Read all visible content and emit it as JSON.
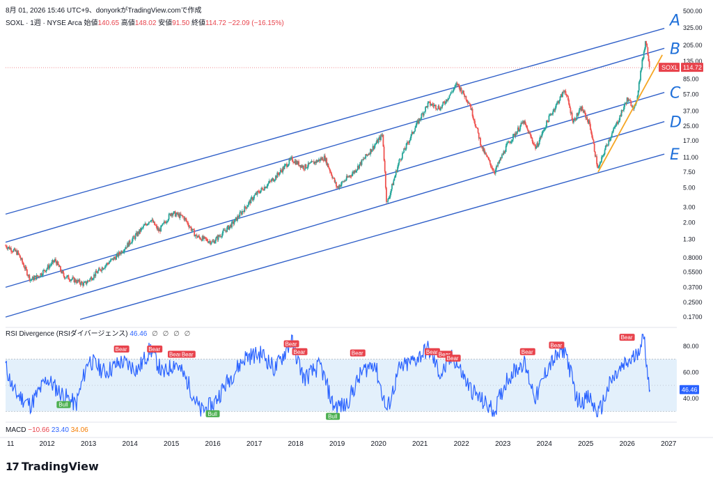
{
  "header": {
    "text": "8月 01, 2026 15:46 UTC+9、donyorkがTradingView.comで作成"
  },
  "legend": {
    "symbol_text": "SOXL · 1週 · NYSE Arca",
    "open_label": "始値",
    "open_value": "140.65",
    "high_label": "高値",
    "high_value": "148.02",
    "low_label": "安値",
    "low_value": "91.50",
    "close_label": "終値",
    "close_value": "114.72",
    "change": "−22.09 (−16.15%)"
  },
  "price_badge": {
    "symbol": "SOXL",
    "value": "114.72",
    "color": "#e8434c"
  },
  "rsi_panel": {
    "title": "RSI Divergence (RSIダイバージェンス)",
    "value": "46.46",
    "icons": [
      "∅",
      "∅",
      "∅",
      "∅"
    ],
    "badge_value": "46.46"
  },
  "macd_panel": {
    "title": "MACD",
    "v1": "−10.66",
    "v2": "23.40",
    "v3": "34.06"
  },
  "brand": {
    "mark": "17",
    "name": "TradingView"
  },
  "channel_labels": [
    "A",
    "B",
    "C",
    "D",
    "E"
  ],
  "chart_data": {
    "type": "candlestick",
    "log_scale": true,
    "y_ticks": [
      "500.00",
      "325.00",
      "205.00",
      "135.00",
      "85.00",
      "57.00",
      "37.00",
      "25.00",
      "17.00",
      "11.00",
      "7.50",
      "5.00",
      "3.00",
      "2.00",
      "1.30",
      "0.8000",
      "0.5500",
      "0.3700",
      "0.2500",
      "0.1700"
    ],
    "y_tick_values": [
      500,
      325,
      205,
      135,
      85,
      57,
      37,
      25,
      17,
      11,
      7.5,
      5,
      3,
      2,
      1.3,
      0.8,
      0.55,
      0.37,
      0.25,
      0.17
    ],
    "ylim": [
      0.15,
      520
    ],
    "x_ticks": [
      "11",
      "2012",
      "2013",
      "2014",
      "2015",
      "2016",
      "2017",
      "2018",
      "2019",
      "2020",
      "2021",
      "2022",
      "2023",
      "2024",
      "2025",
      "2026",
      "2027"
    ],
    "xlim": [
      2011.0,
      2027.2
    ],
    "price_path": [
      [
        2011.0,
        1.1
      ],
      [
        2011.3,
        0.9
      ],
      [
        2011.6,
        0.45
      ],
      [
        2011.8,
        0.5
      ],
      [
        2012.2,
        0.75
      ],
      [
        2012.4,
        0.5
      ],
      [
        2012.9,
        0.4
      ],
      [
        2013.3,
        0.6
      ],
      [
        2013.7,
        0.85
      ],
      [
        2014.0,
        1.2
      ],
      [
        2014.5,
        2.2
      ],
      [
        2014.7,
        1.6
      ],
      [
        2015.0,
        2.6
      ],
      [
        2015.3,
        2.3
      ],
      [
        2015.6,
        1.4
      ],
      [
        2016.0,
        1.2
      ],
      [
        2016.5,
        2.0
      ],
      [
        2017.0,
        4.0
      ],
      [
        2017.5,
        6.5
      ],
      [
        2017.9,
        10.5
      ],
      [
        2018.2,
        8.5
      ],
      [
        2018.7,
        11.0
      ],
      [
        2019.0,
        5.0
      ],
      [
        2019.4,
        7.5
      ],
      [
        2019.8,
        13.0
      ],
      [
        2020.1,
        20.0
      ],
      [
        2020.2,
        3.2
      ],
      [
        2020.5,
        10.0
      ],
      [
        2020.9,
        25.0
      ],
      [
        2021.2,
        45.0
      ],
      [
        2021.5,
        40.0
      ],
      [
        2021.9,
        75.0
      ],
      [
        2022.2,
        45.0
      ],
      [
        2022.5,
        14.0
      ],
      [
        2022.8,
        7.5
      ],
      [
        2023.1,
        15.0
      ],
      [
        2023.5,
        28.0
      ],
      [
        2023.8,
        14.0
      ],
      [
        2024.1,
        30.0
      ],
      [
        2024.5,
        65.0
      ],
      [
        2024.7,
        28.0
      ],
      [
        2024.9,
        40.0
      ],
      [
        2025.1,
        26.0
      ],
      [
        2025.3,
        8.0
      ],
      [
        2025.5,
        15.0
      ],
      [
        2025.8,
        30.0
      ],
      [
        2026.0,
        50.0
      ],
      [
        2026.2,
        40.0
      ],
      [
        2026.35,
        120.0
      ],
      [
        2026.45,
        240.0
      ],
      [
        2026.55,
        114.72
      ]
    ],
    "channels": [
      {
        "label": "A",
        "x": [
          2011.0,
          2026.9
        ],
        "y": [
          2.5,
          320
        ]
      },
      {
        "label": "B",
        "x": [
          2011.0,
          2026.9
        ],
        "y": [
          1.2,
          190
        ]
      },
      {
        "label": "C",
        "x": [
          2011.0,
          2026.9
        ],
        "y": [
          0.37,
          60
        ]
      },
      {
        "label": "D",
        "x": [
          2011.0,
          2026.9
        ],
        "y": [
          0.17,
          28
        ]
      },
      {
        "label": "E",
        "x": [
          2012.8,
          2026.9
        ],
        "y": [
          0.16,
          12
        ]
      }
    ],
    "trendline": {
      "x": [
        2025.3,
        2026.85
      ],
      "y": [
        7.5,
        160
      ],
      "color": "#f5a623"
    },
    "colors": {
      "up": "#26a69a",
      "down": "#ef5350",
      "channel": "#2f5fc8"
    },
    "rsi": {
      "y_ticks": [
        "80.00",
        "60.00",
        "40.00"
      ],
      "y_tick_values": [
        80,
        60,
        40
      ],
      "ylim": [
        25,
        90
      ],
      "band": [
        30,
        70
      ],
      "path": [
        [
          2011.0,
          65
        ],
        [
          2011.2,
          45
        ],
        [
          2011.6,
          35
        ],
        [
          2012.0,
          55
        ],
        [
          2012.3,
          45
        ],
        [
          2012.7,
          35
        ],
        [
          2013.0,
          70
        ],
        [
          2013.4,
          60
        ],
        [
          2013.8,
          68
        ],
        [
          2014.2,
          62
        ],
        [
          2014.5,
          78
        ],
        [
          2014.8,
          58
        ],
        [
          2015.1,
          68
        ],
        [
          2015.4,
          52
        ],
        [
          2015.7,
          30
        ],
        [
          2016.0,
          35
        ],
        [
          2016.4,
          55
        ],
        [
          2016.8,
          72
        ],
        [
          2017.2,
          74
        ],
        [
          2017.5,
          62
        ],
        [
          2017.9,
          84
        ],
        [
          2018.2,
          55
        ],
        [
          2018.6,
          65
        ],
        [
          2018.9,
          35
        ],
        [
          2019.2,
          34
        ],
        [
          2019.6,
          60
        ],
        [
          2019.9,
          68
        ],
        [
          2020.2,
          30
        ],
        [
          2020.5,
          62
        ],
        [
          2020.9,
          70
        ],
        [
          2021.2,
          78
        ],
        [
          2021.5,
          58
        ],
        [
          2021.8,
          72
        ],
        [
          2022.2,
          48
        ],
        [
          2022.5,
          38
        ],
        [
          2022.8,
          30
        ],
        [
          2023.1,
          55
        ],
        [
          2023.5,
          68
        ],
        [
          2023.8,
          40
        ],
        [
          2024.1,
          65
        ],
        [
          2024.5,
          78
        ],
        [
          2024.8,
          38
        ],
        [
          2025.1,
          40
        ],
        [
          2025.3,
          27
        ],
        [
          2025.6,
          52
        ],
        [
          2025.9,
          64
        ],
        [
          2026.2,
          72
        ],
        [
          2026.4,
          88
        ],
        [
          2026.5,
          60
        ],
        [
          2026.55,
          46.46
        ]
      ],
      "bear_labels": [
        [
          2013.8,
          74
        ],
        [
          2014.6,
          74
        ],
        [
          2015.1,
          70
        ],
        [
          2015.4,
          70
        ],
        [
          2017.9,
          78
        ],
        [
          2018.1,
          72
        ],
        [
          2019.5,
          71
        ],
        [
          2021.3,
          72
        ],
        [
          2021.6,
          70
        ],
        [
          2021.8,
          67
        ],
        [
          2023.6,
          72
        ],
        [
          2024.3,
          77
        ],
        [
          2026.0,
          83
        ]
      ],
      "bull_labels": [
        [
          2012.4,
          39
        ],
        [
          2016.0,
          32
        ],
        [
          2018.9,
          30
        ]
      ],
      "bear_text": "Bear",
      "bull_text": "Bull"
    }
  }
}
